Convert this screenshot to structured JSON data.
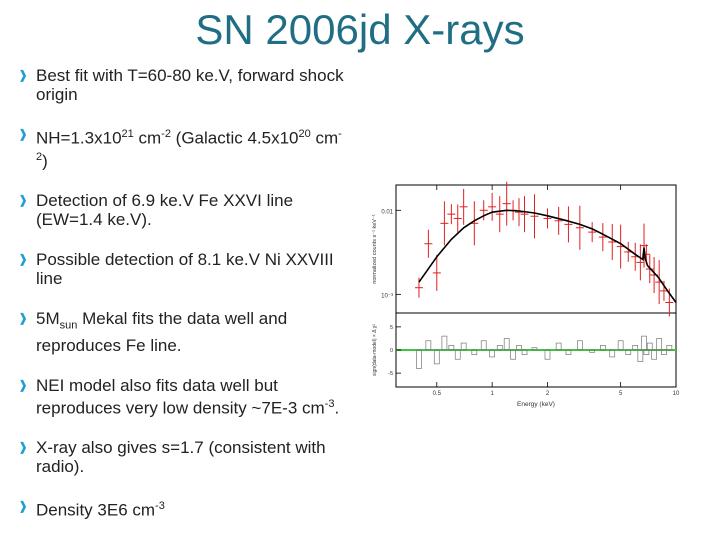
{
  "slide": {
    "title": "SN 2006jd X-rays",
    "bullets": [
      {
        "parts": [
          {
            "t": "Best fit with T=60-80 ke.V, forward shock origin"
          }
        ]
      },
      {
        "parts": [
          {
            "t": "NH=1.3x10"
          },
          {
            "t": "21",
            "sup": true
          },
          {
            "t": " cm"
          },
          {
            "t": "-2",
            "sup": true
          },
          {
            "t": " (Galactic 4.5x10"
          },
          {
            "t": "20",
            "sup": true
          },
          {
            "t": " cm"
          },
          {
            "t": "-2",
            "sup": true
          },
          {
            "t": ")"
          }
        ]
      },
      {
        "parts": [
          {
            "t": "Detection of 6.9 ke.V Fe XXVI line (EW=1.4 ke.V)."
          }
        ]
      },
      {
        "parts": [
          {
            "t": "Possible detection of 8.1 ke.V Ni XXVIII line"
          }
        ]
      },
      {
        "parts": [
          {
            "t": "5M"
          },
          {
            "t": "sun",
            "sub": true
          },
          {
            "t": " Mekal fits the data well and reproduces Fe line."
          }
        ]
      },
      {
        "parts": [
          {
            "t": "NEI model also fits data well but reproduces very low density ~7E-3 cm"
          },
          {
            "t": "-3",
            "sup": true
          },
          {
            "t": "."
          }
        ]
      },
      {
        "parts": [
          {
            "t": "X-ray also gives s=1.7 (consistent with radio)."
          }
        ]
      },
      {
        "parts": [
          {
            "t": "Density 3E6 cm"
          },
          {
            "t": "-3",
            "sup": true
          }
        ]
      }
    ]
  },
  "colors": {
    "title": "#1f6e83",
    "bullet_marker": "#1f9ed1",
    "data": "#e02020",
    "model": "#000000",
    "residual_zero": "#3ec43e"
  },
  "icons": {
    "bullet_marker": "bullet-arrow-icon"
  },
  "chart_data": [
    {
      "type": "scatter",
      "panel": "spectrum",
      "title": "",
      "ylabel": "normalized counts s⁻¹ keV⁻¹",
      "yscale": "log",
      "ylim": [
        0.0006,
        0.02
      ],
      "yticks": [
        {
          "v": 0.01,
          "label": "0.01"
        },
        {
          "v": 0.001,
          "label": "10⁻³"
        }
      ],
      "xscale": "log",
      "xlim": [
        0.3,
        10
      ],
      "series": [
        {
          "role": "data",
          "color": "#e02020",
          "x": [
            0.4,
            0.45,
            0.5,
            0.55,
            0.6,
            0.65,
            0.7,
            0.8,
            0.9,
            1.0,
            1.1,
            1.2,
            1.3,
            1.4,
            1.5,
            1.7,
            2.0,
            2.3,
            2.6,
            3.0,
            3.5,
            4.0,
            4.5,
            5.0,
            5.5,
            6.0,
            6.4,
            6.7,
            6.9,
            7.2,
            7.6,
            8.1,
            8.6,
            9.2
          ],
          "y": [
            0.0012,
            0.004,
            0.0018,
            0.007,
            0.009,
            0.008,
            0.011,
            0.007,
            0.01,
            0.011,
            0.009,
            0.012,
            0.01,
            0.0095,
            0.009,
            0.0085,
            0.008,
            0.0075,
            0.0068,
            0.0062,
            0.0055,
            0.0048,
            0.0042,
            0.0037,
            0.0032,
            0.0028,
            0.0024,
            0.0038,
            0.003,
            0.002,
            0.0017,
            0.0014,
            0.0011,
            0.0008
          ]
        },
        {
          "role": "model",
          "color": "#000000",
          "x": [
            0.4,
            0.5,
            0.6,
            0.7,
            0.8,
            0.9,
            1.0,
            1.2,
            1.4,
            1.7,
            2.0,
            2.5,
            3.0,
            3.5,
            4.0,
            5.0,
            6.0,
            6.6,
            6.7,
            6.8,
            7.0,
            8.0,
            9.0,
            10
          ],
          "y": [
            0.0014,
            0.0028,
            0.0045,
            0.0062,
            0.0075,
            0.0086,
            0.0095,
            0.01,
            0.0098,
            0.0093,
            0.0086,
            0.0076,
            0.0068,
            0.006,
            0.0052,
            0.004,
            0.003,
            0.0026,
            0.0036,
            0.0027,
            0.0022,
            0.0016,
            0.0011,
            0.0008
          ]
        }
      ]
    },
    {
      "type": "scatter",
      "panel": "residuals",
      "ylabel": "sign(data-model) × Δ χ²",
      "xlabel": "Energy (keV)",
      "xscale": "log",
      "xlim": [
        0.3,
        10
      ],
      "ylim": [
        -8,
        8
      ],
      "yticks": [
        {
          "v": 0,
          "label": "0"
        },
        {
          "v": 5,
          "label": "5"
        },
        {
          "v": -5,
          "label": "-5"
        }
      ],
      "xticks": [
        {
          "v": 0.5,
          "label": "0.5"
        },
        {
          "v": 1,
          "label": "1"
        },
        {
          "v": 2,
          "label": "2"
        },
        {
          "v": 5,
          "label": "5"
        },
        {
          "v": 10,
          "label": "10"
        }
      ],
      "series": [
        {
          "role": "residuals",
          "color": "#777777",
          "x": [
            0.4,
            0.45,
            0.5,
            0.55,
            0.6,
            0.65,
            0.7,
            0.8,
            0.9,
            1.0,
            1.1,
            1.2,
            1.3,
            1.4,
            1.5,
            1.7,
            2.0,
            2.3,
            2.6,
            3.0,
            3.5,
            4.0,
            4.5,
            5.0,
            5.5,
            6.0,
            6.4,
            6.7,
            6.9,
            7.2,
            7.6,
            8.1,
            8.6,
            9.2
          ],
          "y": [
            -4,
            2,
            -3,
            3,
            1,
            -2,
            1.5,
            -1,
            2,
            -1.5,
            1,
            2.5,
            -2,
            1,
            -1,
            0.5,
            -2,
            1.5,
            -1,
            2,
            -0.5,
            1,
            -1.5,
            2,
            -1,
            1,
            -2.5,
            3,
            -1,
            1.5,
            -2,
            2.5,
            -1,
            1
          ]
        },
        {
          "role": "zero-line",
          "color": "#3ec43e",
          "x": [
            0.3,
            10
          ],
          "y": [
            0,
            0
          ]
        }
      ]
    }
  ]
}
